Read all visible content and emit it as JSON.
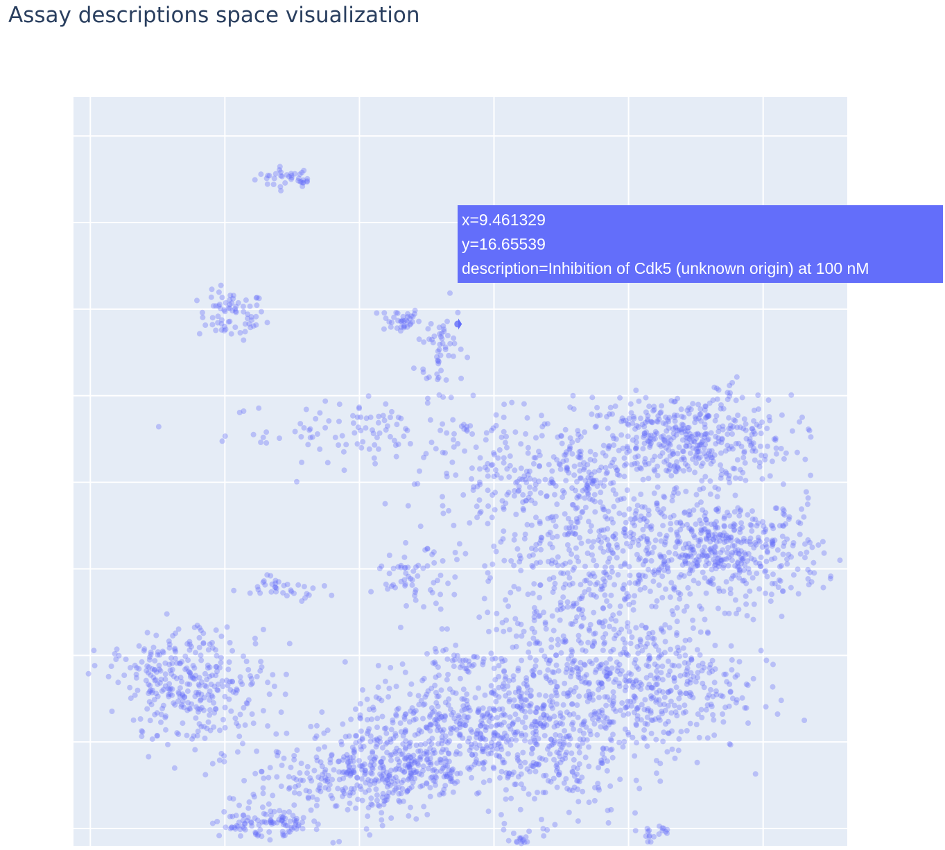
{
  "chart_data": {
    "type": "scatter",
    "title": "Assay descriptions space visualization",
    "xlabel": "",
    "ylabel": "",
    "grid": true,
    "marker_color": "#636efa",
    "plot_bg": "#e5ecf6",
    "hover": {
      "x_text": "x=9.461329",
      "y_text": "y=16.65539",
      "description_text": "description=Inhibition of Cdk5 (unknown origin) at 100 nM",
      "x": 9.461329,
      "y": 16.65539
    },
    "clusters": [
      {
        "cx": 6.9,
        "cy": 20.05,
        "sx": 0.22,
        "sy": 0.12,
        "n": 30
      },
      {
        "cx": 7.2,
        "cy": 19.95,
        "sx": 0.04,
        "sy": 0.04,
        "n": 8
      },
      {
        "cx": 6.1,
        "cy": 16.85,
        "sx": 0.25,
        "sy": 0.28,
        "n": 70
      },
      {
        "cx": 8.6,
        "cy": 16.75,
        "sx": 0.15,
        "sy": 0.15,
        "n": 35
      },
      {
        "cx": 9.2,
        "cy": 16.1,
        "sx": 0.18,
        "sy": 0.55,
        "n": 55
      },
      {
        "cx": 8.2,
        "cy": 14.2,
        "sx": 1.1,
        "sy": 0.35,
        "n": 110
      },
      {
        "cx": 10.5,
        "cy": 13.0,
        "sx": 0.8,
        "sy": 0.55,
        "n": 160
      },
      {
        "cx": 12.8,
        "cy": 14.0,
        "sx": 0.8,
        "sy": 0.5,
        "n": 420
      },
      {
        "cx": 13.5,
        "cy": 11.4,
        "sx": 0.7,
        "sy": 0.6,
        "n": 420
      },
      {
        "cx": 11.6,
        "cy": 11.6,
        "sx": 0.9,
        "sy": 1.3,
        "n": 520
      },
      {
        "cx": 12.3,
        "cy": 8.3,
        "sx": 0.7,
        "sy": 0.8,
        "n": 400
      },
      {
        "cx": 10.9,
        "cy": 7.9,
        "sx": 0.5,
        "sy": 1.5,
        "n": 380
      },
      {
        "cx": 9.6,
        "cy": 7.3,
        "sx": 0.9,
        "sy": 0.7,
        "n": 450
      },
      {
        "cx": 8.5,
        "cy": 6.4,
        "sx": 0.7,
        "sy": 0.5,
        "n": 320
      },
      {
        "cx": 7.4,
        "cy": 5.9,
        "sx": 0.7,
        "sy": 0.5,
        "n": 110
      },
      {
        "cx": 6.5,
        "cy": 5.1,
        "sx": 0.3,
        "sy": 0.15,
        "n": 70
      },
      {
        "cx": 7.0,
        "cy": 5.05,
        "sx": 0.15,
        "sy": 0.1,
        "n": 25
      },
      {
        "cx": 8.8,
        "cy": 10.8,
        "sx": 0.3,
        "sy": 0.3,
        "n": 55
      },
      {
        "cx": 6.9,
        "cy": 10.6,
        "sx": 0.3,
        "sy": 0.15,
        "n": 35
      },
      {
        "cx": 5.6,
        "cy": 8.3,
        "sx": 0.55,
        "sy": 0.7,
        "n": 300
      },
      {
        "cx": 4.7,
        "cy": 8.8,
        "sx": 0.35,
        "sy": 0.2,
        "n": 35
      },
      {
        "cx": 9.5,
        "cy": 8.85,
        "sx": 0.3,
        "sy": 0.1,
        "n": 28
      },
      {
        "cx": 12.4,
        "cy": 4.9,
        "sx": 0.15,
        "sy": 0.1,
        "n": 18
      },
      {
        "cx": 10.4,
        "cy": 4.7,
        "sx": 0.06,
        "sy": 0.1,
        "n": 14
      },
      {
        "cx": 9.55,
        "cy": 14.25,
        "sx": 0.04,
        "sy": 0.04,
        "n": 6
      },
      {
        "cx": 13.5,
        "cy": 15.0,
        "sx": 0.15,
        "sy": 0.2,
        "n": 10
      }
    ],
    "xlim": [
      3.75,
      15.25
    ],
    "ylim": [
      4.6,
      21.9
    ]
  }
}
